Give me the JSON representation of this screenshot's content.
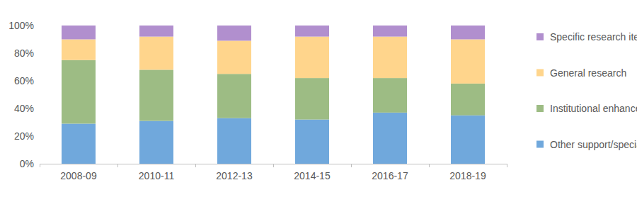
{
  "chart_data": {
    "type": "bar",
    "stacked": true,
    "grid": false,
    "legend": "right",
    "categories": [
      "2008-09",
      "2010-11",
      "2012-13",
      "2014-15",
      "2016-17",
      "2018-19"
    ],
    "series": [
      {
        "name": "Other support/special items",
        "color": "#70a8dc",
        "values": [
          29,
          31,
          33,
          32,
          37,
          35
        ]
      },
      {
        "name": "Institutional enhancement",
        "color": "#9dbc84",
        "values": [
          46,
          37,
          32,
          30,
          25,
          23
        ]
      },
      {
        "name": "General research",
        "color": "#ffd58c",
        "values": [
          15,
          24,
          24,
          30,
          30,
          32
        ]
      },
      {
        "name": "Specific research items",
        "color": "#b18fce",
        "values": [
          10,
          8,
          11,
          8,
          8,
          10
        ]
      }
    ],
    "ylim": [
      0,
      100
    ],
    "yticks": [
      {
        "value": 0,
        "label": "0%"
      },
      {
        "value": 20,
        "label": "20%"
      },
      {
        "value": 40,
        "label": "40%"
      },
      {
        "value": 60,
        "label": "60%"
      },
      {
        "value": 80,
        "label": "80%"
      },
      {
        "value": 100,
        "label": "100%"
      }
    ]
  }
}
